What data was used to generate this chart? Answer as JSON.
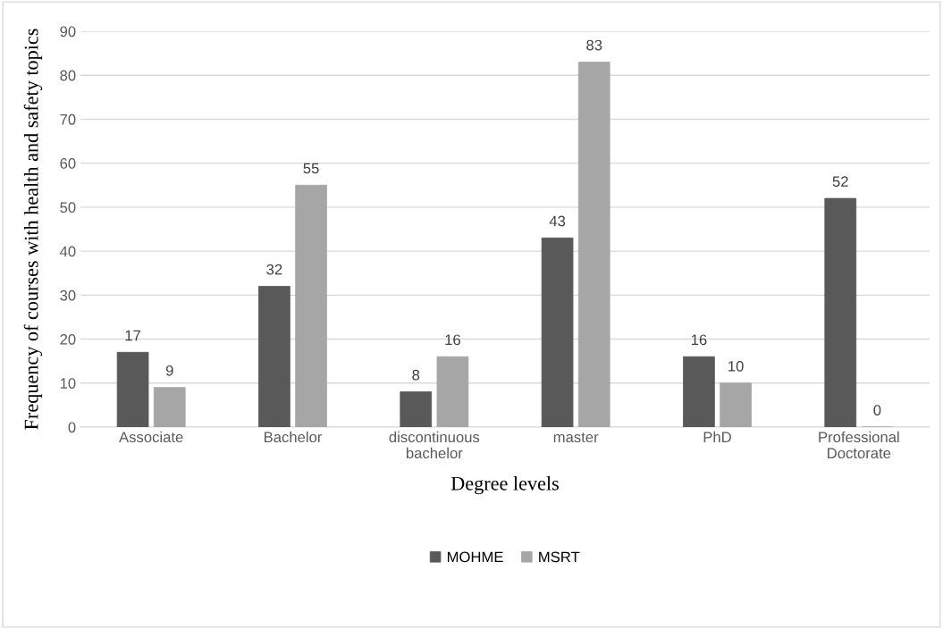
{
  "chart_data": {
    "type": "bar",
    "xlabel": "Degree levels",
    "ylabel": "Frequency of courses with health and safety topics",
    "categories": [
      "Associate",
      "Bachelor",
      "discontinuous\nbachelor",
      "master",
      "PhD",
      "Professional\nDoctorate"
    ],
    "series": [
      {
        "name": "MOHME",
        "color": "#595959",
        "values": [
          17,
          32,
          8,
          43,
          16,
          52
        ]
      },
      {
        "name": "MSRT",
        "color": "#a6a6a6",
        "values": [
          9,
          55,
          16,
          83,
          10,
          0
        ]
      }
    ],
    "ylim": [
      0,
      90
    ],
    "yticks": [
      0,
      10,
      20,
      30,
      40,
      50,
      60,
      70,
      80,
      90
    ],
    "grid": "y",
    "legend": "bottom",
    "data_labels": true
  }
}
